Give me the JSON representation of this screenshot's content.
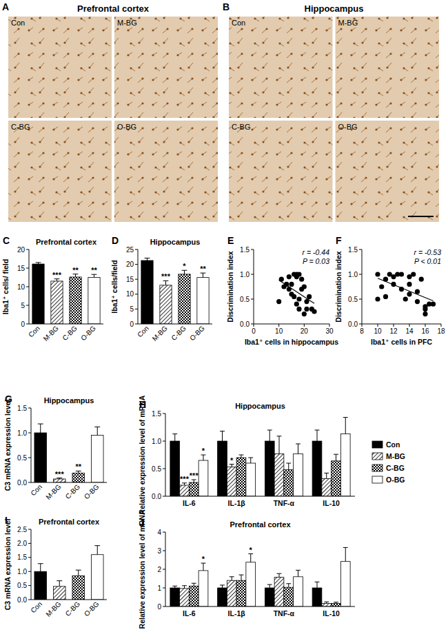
{
  "micrographs": [
    {
      "panel_label": "A",
      "title": "Prefrontal cortex",
      "groups": [
        "Con",
        "M-BG",
        "C-BG",
        "O-BG"
      ]
    },
    {
      "panel_label": "B",
      "title": "Hippocampus",
      "groups": [
        "Con",
        "M-BG",
        "C-BG",
        "O-BG"
      ]
    }
  ],
  "chart_data": [
    {
      "type": "bar",
      "panel_label": "C",
      "title": "Prefrontal cortex",
      "y_label": "Iba1⁺ cells/ field",
      "categories": [
        "Con",
        "M-BG",
        "C-BG",
        "O-BG"
      ],
      "values": [
        16.1,
        11.5,
        12.6,
        12.5
      ],
      "errors": [
        0.4,
        0.6,
        0.8,
        0.8
      ],
      "annotations": [
        null,
        "***",
        "**",
        "**"
      ],
      "colors": [
        "#000000",
        "#000000",
        "#000000",
        "#ffffff"
      ],
      "ylim": [
        0,
        20
      ],
      "yticks": [
        0,
        5,
        10,
        15,
        20
      ]
    },
    {
      "type": "bar",
      "panel_label": "D",
      "title": "Hippocampus",
      "y_label": "Iba1⁺ cells/field",
      "categories": [
        "Con",
        "M-BG",
        "C-BG",
        "O-BG"
      ],
      "values": [
        21.3,
        13.0,
        16.7,
        15.6
      ],
      "errors": [
        0.8,
        1.5,
        1.3,
        1.5
      ],
      "annotations": [
        null,
        "***",
        "*",
        "**"
      ],
      "colors": [
        "#000000",
        "#000000",
        "#000000",
        "#ffffff"
      ],
      "ylim": [
        0,
        25
      ],
      "yticks": [
        0,
        5,
        10,
        15,
        20,
        25
      ]
    },
    {
      "type": "scatter",
      "panel_label": "E",
      "x_label": "Iba1⁺ cells in hippocampus",
      "y_label": "Discrimination index",
      "annotations": [
        "r = -0.44",
        "P = 0.03"
      ],
      "color": "#000000",
      "marker": "circle",
      "x": [
        10,
        11,
        12,
        13,
        14,
        14,
        15,
        15,
        16,
        16,
        17,
        17,
        17,
        18,
        18,
        18,
        19,
        19,
        20,
        20,
        21,
        21,
        22,
        23,
        24
      ],
      "values": [
        0.45,
        0.9,
        0.75,
        0.8,
        0.95,
        0.7,
        0.6,
        0.8,
        1.0,
        0.55,
        1.0,
        0.95,
        0.4,
        1.0,
        0.5,
        0.3,
        0.9,
        0.7,
        0.75,
        0.2,
        0.3,
        0.45,
        0.55,
        0.3,
        0.25
      ],
      "xlim": [
        0,
        30
      ],
      "xticks": [
        0,
        10,
        20,
        30
      ],
      "ylim": [
        0,
        1.5
      ],
      "yticks": [
        {
          "value": 0,
          "label": "0.0"
        },
        {
          "value": 0.5,
          "label": "0.5"
        },
        {
          "value": 1,
          "label": "1.0"
        },
        {
          "value": 1.5,
          "label": "1.5"
        }
      ]
    },
    {
      "type": "scatter",
      "panel_label": "F",
      "x_label": "Iba1⁺ cells in PFC",
      "y_label": "Discrimination index",
      "annotations": [
        "r = -0.53",
        "P < 0.01"
      ],
      "color": "#000000",
      "marker": "circle",
      "x": [
        10,
        10,
        10.5,
        11,
        11,
        11.5,
        12,
        12,
        12.5,
        13,
        13,
        13.5,
        14,
        14,
        14,
        14.5,
        15,
        15,
        15.5,
        16,
        16,
        16.5,
        17,
        16
      ],
      "values": [
        0.5,
        1.0,
        0.75,
        0.9,
        0.55,
        1.0,
        0.95,
        0.8,
        1.0,
        0.7,
        1.0,
        0.5,
        0.95,
        0.8,
        0.6,
        1.0,
        0.65,
        0.45,
        0.9,
        0.35,
        0.2,
        0.4,
        0.4,
        0.3
      ],
      "xlim": [
        8,
        18
      ],
      "xticks": [
        8,
        10,
        12,
        14,
        16,
        18
      ],
      "ylim": [
        0,
        1.5
      ],
      "yticks": [
        {
          "value": 0,
          "label": "0.0"
        },
        {
          "value": 0.5,
          "label": "0.5"
        },
        {
          "value": 1,
          "label": "1.0"
        },
        {
          "value": 1.5,
          "label": "1.5"
        }
      ]
    },
    {
      "type": "bar",
      "panel_label": "G",
      "title": "Hippocampus",
      "y_label": "C3 mRNA expression level",
      "categories": [
        "Con",
        "M-BG",
        "C-BG",
        "O-BG"
      ],
      "values": [
        1.0,
        0.07,
        0.19,
        0.95
      ],
      "errors": [
        0.18,
        0.02,
        0.04,
        0.17
      ],
      "annotations": [
        null,
        "***",
        "**",
        null
      ],
      "colors": [
        "#000000",
        "#000000",
        "#000000",
        "#ffffff"
      ],
      "ylim": [
        0,
        1.5
      ],
      "yticks": [
        {
          "value": 0,
          "label": "0.0"
        },
        {
          "value": 0.5,
          "label": "0.5"
        },
        {
          "value": 1,
          "label": "1.0"
        },
        {
          "value": 1.5,
          "label": "1.5"
        }
      ]
    },
    {
      "type": "bar",
      "panel_label": "H",
      "title": "Hippocampus",
      "y_label": "Relative expression level of mRNA",
      "categories": [
        "IL-6",
        "IL-1β",
        "TNF-α",
        "IL-10"
      ],
      "legend": "right",
      "series": [
        {
          "name": "Con",
          "color": "#000000",
          "values": [
            1.0,
            1.0,
            1.0,
            1.0
          ],
          "errors": [
            0.13,
            0.18,
            0.2,
            0.2
          ]
        },
        {
          "name": "M-BG",
          "color": "#000000",
          "values": [
            0.2,
            0.53,
            0.77,
            0.32
          ],
          "errors": [
            0.04,
            0.05,
            0.32,
            0.1
          ],
          "annotations": [
            "***",
            "*",
            null,
            null
          ]
        },
        {
          "name": "C-BG",
          "color": "#000000",
          "values": [
            0.25,
            0.7,
            0.48,
            0.64
          ],
          "errors": [
            0.05,
            0.05,
            0.12,
            0.12
          ],
          "annotations": [
            "***",
            null,
            null,
            null
          ]
        },
        {
          "name": "O-BG",
          "color": "#ffffff",
          "values": [
            0.65,
            0.6,
            0.77,
            1.13
          ],
          "errors": [
            0.1,
            0.1,
            0.18,
            0.3
          ],
          "annotations": [
            "*",
            null,
            null,
            null
          ]
        }
      ],
      "ylim": [
        0,
        1.5
      ],
      "yticks": [
        {
          "value": 0,
          "label": "0.0"
        },
        {
          "value": 0.5,
          "label": "0.5"
        },
        {
          "value": 1,
          "label": "1.0"
        },
        {
          "value": 1.5,
          "label": "1.5"
        }
      ]
    },
    {
      "type": "bar",
      "panel_label": "I",
      "title": "Prefrontal cortex",
      "y_label": "C3 mRNA expression level",
      "categories": [
        "Con",
        "M-BG",
        "C-BG",
        "O-BG"
      ],
      "values": [
        1.0,
        0.47,
        0.85,
        1.6
      ],
      "errors": [
        0.28,
        0.2,
        0.2,
        0.32
      ],
      "colors": [
        "#000000",
        "#000000",
        "#000000",
        "#ffffff"
      ],
      "ylim": [
        0,
        2.5
      ],
      "yticks": [
        {
          "value": 0,
          "label": "0.0"
        },
        {
          "value": 0.5,
          "label": "0.5"
        },
        {
          "value": 1,
          "label": "1.0"
        },
        {
          "value": 1.5,
          "label": "1.5"
        },
        {
          "value": 2,
          "label": "2.0"
        },
        2.5
      ]
    },
    {
      "type": "bar",
      "panel_label": "J",
      "title": "Prefrontal cortex",
      "y_label": "Relative expression level of mRNA",
      "categories": [
        "IL-6",
        "IL-1β",
        "TNF-α",
        "IL-10"
      ],
      "series": [
        {
          "name": "Con",
          "color": "#000000",
          "values": [
            1.0,
            1.0,
            1.0,
            1.0
          ],
          "errors": [
            0.1,
            0.15,
            0.18,
            0.32
          ]
        },
        {
          "name": "M-BG",
          "color": "#000000",
          "values": [
            0.97,
            1.4,
            1.57,
            0.17
          ],
          "errors": [
            0.15,
            0.2,
            0.2,
            0.08
          ]
        },
        {
          "name": "C-BG",
          "color": "#000000",
          "values": [
            1.1,
            1.4,
            1.03,
            0.17
          ],
          "errors": [
            0.15,
            0.3,
            0.2,
            0.06
          ]
        },
        {
          "name": "O-BG",
          "color": "#ffffff",
          "values": [
            1.93,
            2.38,
            1.6,
            2.42
          ],
          "errors": [
            0.4,
            0.45,
            0.35,
            0.75
          ],
          "annotations": [
            "*",
            "*",
            null,
            null
          ]
        }
      ],
      "ylim": [
        0,
        4
      ],
      "yticks": [
        0,
        1,
        2,
        3,
        4
      ]
    }
  ]
}
